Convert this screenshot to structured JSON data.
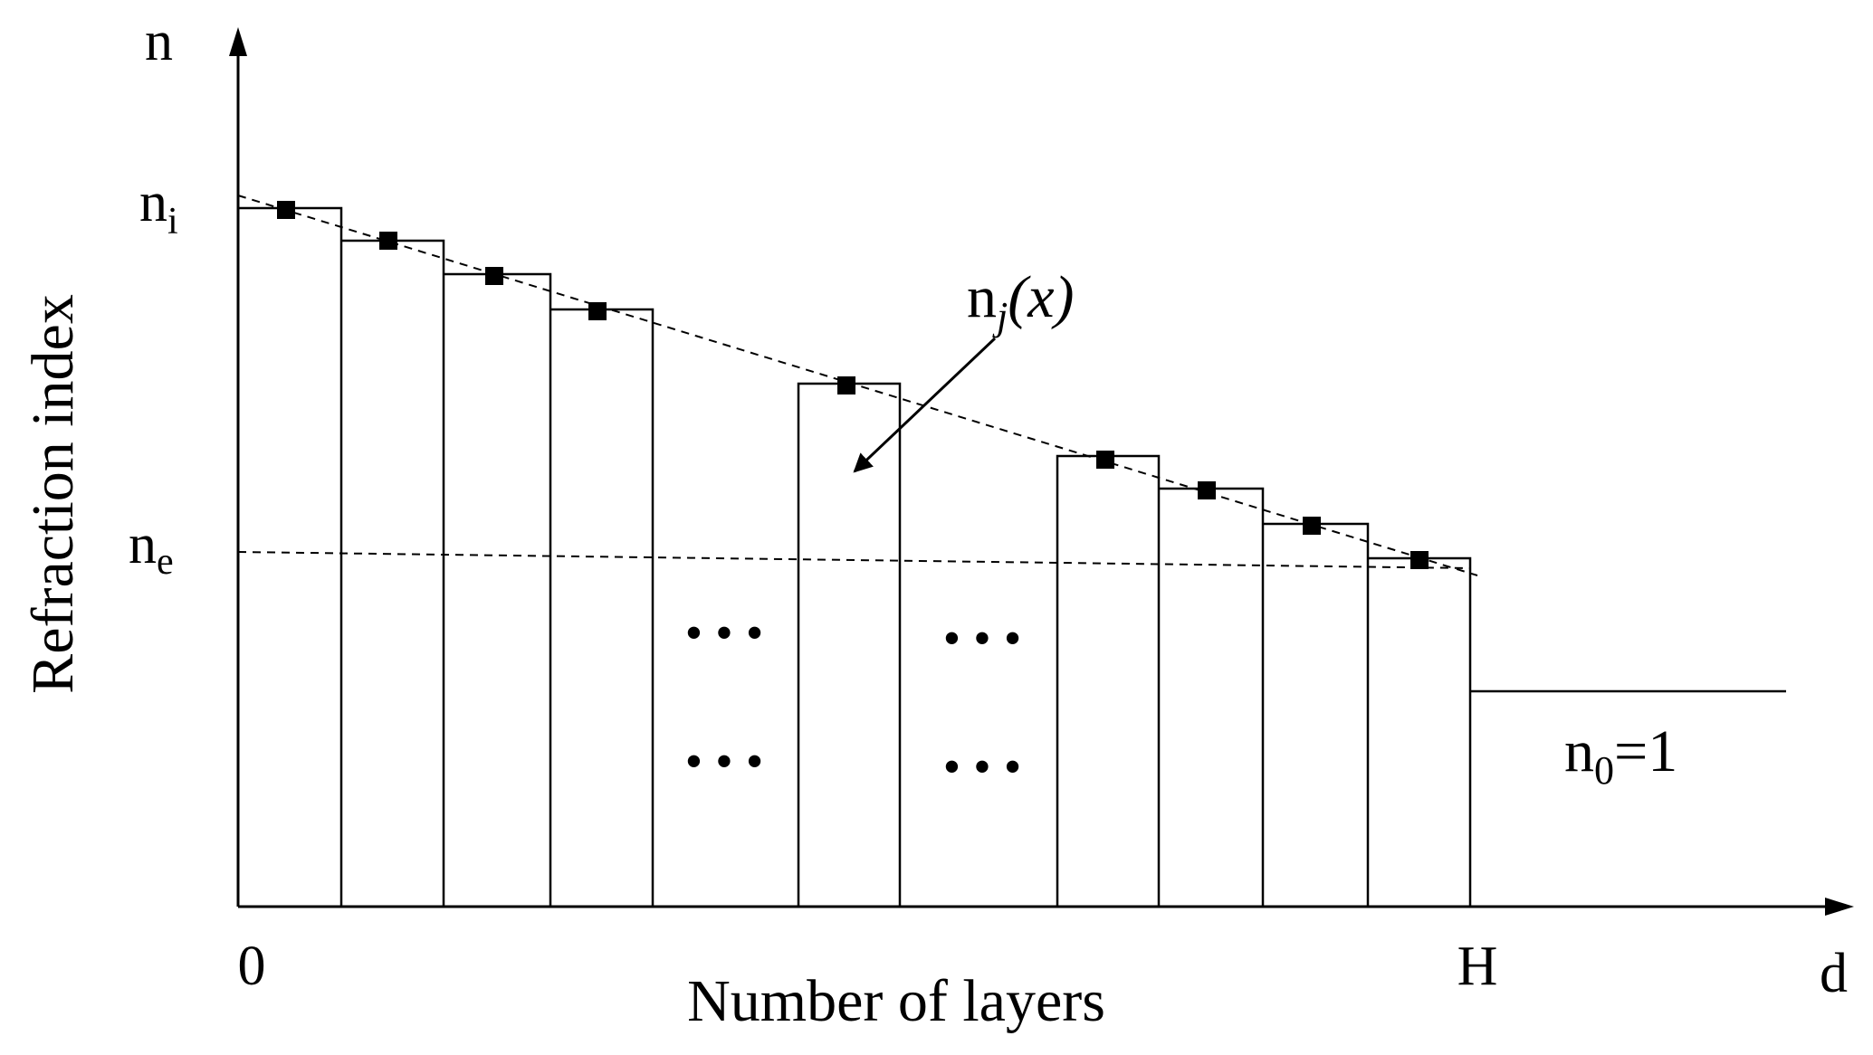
{
  "diagram": {
    "y_axis_letter": "n",
    "y_axis_label": "Refraction index",
    "x_axis_letter": "d",
    "x_axis_label": "Number of layers",
    "x_origin_label": "0",
    "x_end_label": "H",
    "n_i": {
      "base": "n",
      "sub": "i"
    },
    "n_e": {
      "base": "n",
      "sub": "e"
    },
    "n_j": {
      "base": "n",
      "sub": "j",
      "arg": "(x)"
    },
    "n_0": {
      "base": "n",
      "sub": "0",
      "rest": "=1"
    },
    "ellipsis": "• • •",
    "layers": [
      {
        "group": "left",
        "level": 0.88
      },
      {
        "group": "left",
        "level": 0.8
      },
      {
        "group": "left",
        "level": 0.71
      },
      {
        "group": "left",
        "level": 0.615
      },
      {
        "group": "middle",
        "level": 0.38
      },
      {
        "group": "right",
        "level": 0.07
      },
      {
        "group": "right",
        "level": -0.01
      },
      {
        "group": "right",
        "level": -0.11
      },
      {
        "group": "right",
        "level": -0.21
      }
    ],
    "outside_level": -0.55,
    "colors": {
      "stroke": "#000000",
      "background": "#ffffff"
    }
  }
}
